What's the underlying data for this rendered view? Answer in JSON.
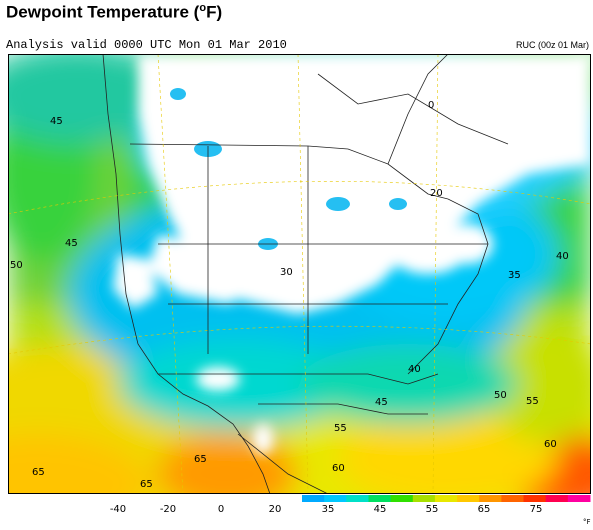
{
  "header": {
    "title": "Dewpoint Temperature (",
    "title_sup": "o",
    "title_unit": "F)",
    "subtitle": "Analysis valid 0000 UTC Mon 01 Mar 2010",
    "model_label": "RUC (00z 01 Mar)"
  },
  "map": {
    "contour_labels": [
      {
        "text": "45",
        "region": "pacific-northwest-offshore"
      },
      {
        "text": "45",
        "region": "pacific-offshore"
      },
      {
        "text": "50",
        "region": "pacific-offshore-west"
      },
      {
        "text": "0",
        "region": "hudson-bay"
      },
      {
        "text": "20",
        "region": "great-lakes-north"
      },
      {
        "text": "30",
        "region": "central-plains"
      },
      {
        "text": "35",
        "region": "northeast-coast"
      },
      {
        "text": "40",
        "region": "atlantic-north"
      },
      {
        "text": "40",
        "region": "gulf-coast"
      },
      {
        "text": "45",
        "region": "gulf-of-mexico"
      },
      {
        "text": "50",
        "region": "atlantic-south"
      },
      {
        "text": "55",
        "region": "atlantic-offshore"
      },
      {
        "text": "55",
        "region": "mexico-central"
      },
      {
        "text": "60",
        "region": "caribbean"
      },
      {
        "text": "60",
        "region": "mexico-south"
      },
      {
        "text": "65",
        "region": "pacific-south"
      },
      {
        "text": "65",
        "region": "mexico-west"
      },
      {
        "text": "65",
        "region": "pacific-southwest"
      }
    ]
  },
  "legend": {
    "colors": [
      "#00aaff",
      "#00c8ff",
      "#00e0c8",
      "#00e060",
      "#30e000",
      "#a8e000",
      "#e8e800",
      "#ffc800",
      "#ff9600",
      "#ff6400",
      "#ff3200",
      "#ff0050",
      "#ff00a0"
    ],
    "tick_labels": [
      "-40",
      "-20",
      "0",
      "20",
      "35",
      "45",
      "55",
      "65",
      "75"
    ],
    "unit": "°F"
  }
}
